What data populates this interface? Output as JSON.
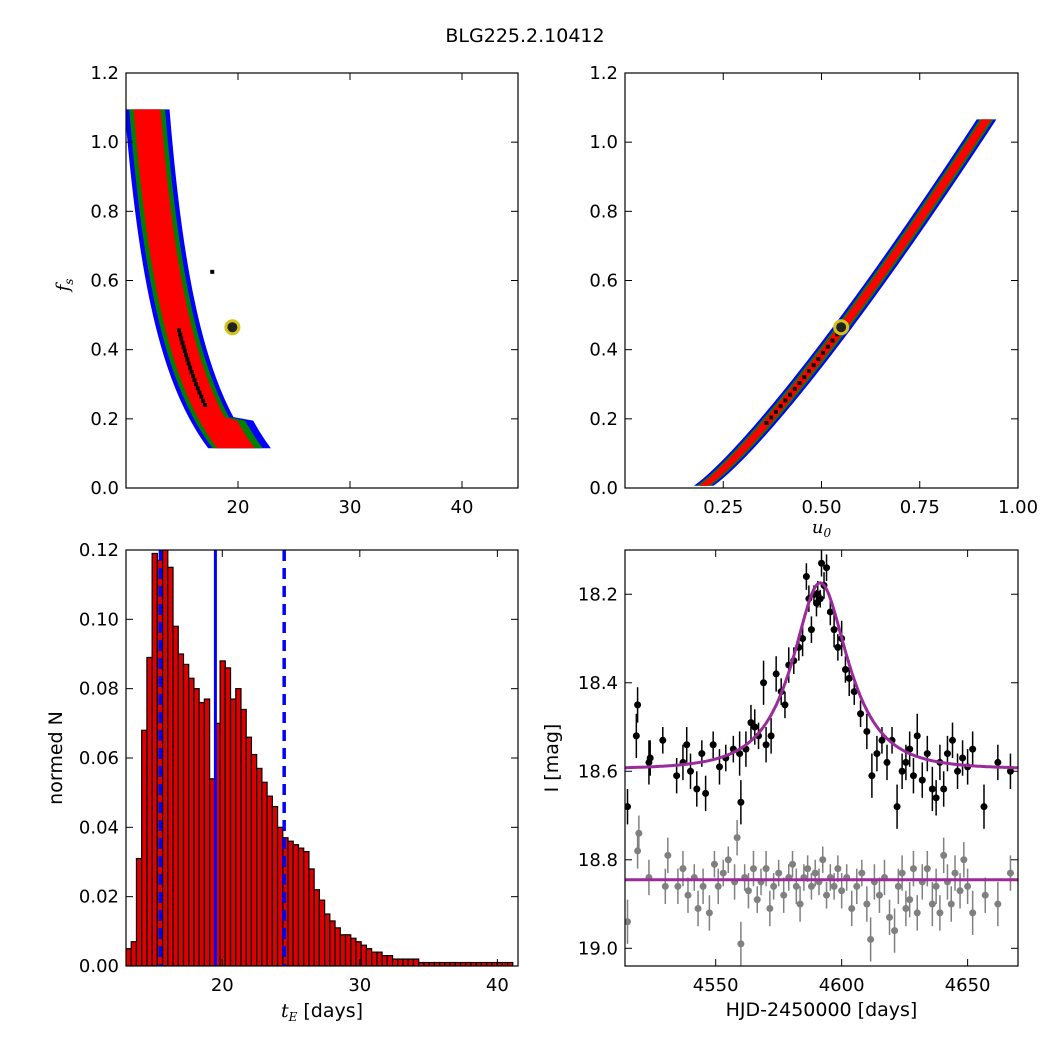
{
  "figure": {
    "title": "BLG225.2.10412"
  },
  "colors": {
    "sigma1": "#ff0000",
    "sigma2": "#008000",
    "sigma3": "#0000ff",
    "best": "#000000",
    "marker_ring": "#d4c21a",
    "hist_fill": "#dd0000",
    "median": "#0000ff",
    "model": "#9b2a9b",
    "data": "#000000",
    "residuals": "#808080"
  },
  "chart_data": [
    {
      "id": "fs_vs_tE",
      "type": "heatmap",
      "xlim": [
        10,
        45
      ],
      "ylim": [
        0.0,
        1.2
      ],
      "xticks": [
        "20",
        "30",
        "40"
      ],
      "xtick_values": [
        20,
        30,
        40
      ],
      "yticks": [
        "0.0",
        "0.2",
        "0.4",
        "0.6",
        "0.8",
        "1.0",
        "1.2"
      ],
      "ytick_values": [
        0.0,
        0.2,
        0.4,
        0.6,
        0.8,
        1.0,
        1.2
      ],
      "xlabel": "",
      "ylabel_math": "f",
      "ylabel_sub": "s",
      "best_fit": {
        "x": 19.5,
        "y": 0.465
      },
      "band": {
        "form": "x = xmin + k / (y + c)",
        "xmin": 8.2,
        "k": 5.4,
        "c": 0.37,
        "y_range": [
          0.115,
          1.1
        ],
        "half_width": {
          "sigma1": 1.2,
          "sigma2": 1.6,
          "sigma3": 2.0
        }
      }
    },
    {
      "id": "fs_vs_u0",
      "type": "heatmap",
      "xlim": [
        0.0,
        1.0
      ],
      "ylim": [
        0.0,
        1.2
      ],
      "xticks": [
        "0.25",
        "0.50",
        "0.75",
        "1.00"
      ],
      "xtick_values": [
        0.25,
        0.5,
        0.75,
        1.0
      ],
      "yticks": [
        "0.0",
        "0.2",
        "0.4",
        "0.6",
        "0.8",
        "1.0",
        "1.2"
      ],
      "ytick_values": [
        0.0,
        0.2,
        0.4,
        0.6,
        0.8,
        1.0,
        1.2
      ],
      "xlabel_math": "u",
      "xlabel_sub": "0",
      "best_fit": {
        "x": 0.55,
        "y": 0.465
      },
      "band": {
        "form": "y = a (x - x0)^p",
        "a": 1.55,
        "x0": 0.19,
        "p": 1.19,
        "x_range": [
          0.2,
          0.92
        ],
        "half_width": {
          "sigma1": 0.012,
          "sigma2": 0.018,
          "sigma3": 0.025
        }
      }
    },
    {
      "id": "tE_histogram",
      "type": "bar",
      "xlim": [
        13,
        41.5
      ],
      "ylim": [
        0.0,
        0.12
      ],
      "xticks": [
        "20",
        "30",
        "40"
      ],
      "xtick_values": [
        20,
        30,
        40
      ],
      "yticks": [
        "0.00",
        "0.02",
        "0.04",
        "0.06",
        "0.08",
        "0.10",
        "0.12"
      ],
      "ytick_values": [
        0.0,
        0.02,
        0.04,
        0.06,
        0.08,
        0.1,
        0.12
      ],
      "ylabel": "normed N",
      "xlabel_math": "t",
      "xlabel_sub": "E",
      "xlabel_unit": " [days]",
      "bin_start": 13.0,
      "bin_width": 0.38,
      "values": [
        0.005,
        0.007,
        0.031,
        0.068,
        0.089,
        0.119,
        0.117,
        0.12,
        0.115,
        0.098,
        0.09,
        0.087,
        0.083,
        0.08,
        0.076,
        0.077,
        0.054,
        0.07,
        0.088,
        0.086,
        0.077,
        0.08,
        0.074,
        0.066,
        0.061,
        0.057,
        0.053,
        0.049,
        0.046,
        0.04,
        0.037,
        0.036,
        0.035,
        0.034,
        0.033,
        0.028,
        0.022,
        0.019,
        0.015,
        0.013,
        0.011,
        0.009,
        0.009,
        0.008,
        0.007,
        0.006,
        0.005,
        0.004,
        0.004,
        0.003,
        0.003,
        0.002,
        0.002,
        0.002,
        0.002,
        0.002,
        0.001,
        0.001,
        0.001,
        0.001,
        0.001,
        0.001,
        0.001,
        0.001,
        0.001,
        0.001,
        0.001,
        0.001,
        0.001,
        0.001,
        0.001,
        0.001,
        0.001,
        0.001
      ],
      "median": 19.5,
      "quantiles": [
        15.5,
        24.5
      ]
    },
    {
      "id": "light_curve",
      "type": "scatter",
      "xlim": [
        4514,
        4670
      ],
      "ylim": [
        19.04,
        18.1
      ],
      "xticks": [
        "4550",
        "4600",
        "4650"
      ],
      "xtick_values": [
        4550,
        4600,
        4650
      ],
      "yticks": [
        "18.2",
        "18.4",
        "18.6",
        "18.8",
        "19.0"
      ],
      "ytick_values": [
        18.2,
        18.4,
        18.6,
        18.8,
        19.0
      ],
      "xlabel": "HJD-2450000 [days]",
      "ylabel": "I [mag]",
      "model": {
        "t0": 4591.5,
        "tE": 19.5,
        "u0": 0.55,
        "fs": 0.465,
        "I_base": 18.595
      },
      "residual_baseline": 18.845,
      "data_points": [
        [
          4515.0,
          18.68,
          0.04
        ],
        [
          4518.5,
          18.52,
          0.05
        ],
        [
          4519.0,
          18.45,
          0.04
        ],
        [
          4523.5,
          18.58,
          0.05
        ],
        [
          4524.0,
          18.57,
          0.04
        ],
        [
          4529.0,
          18.53,
          0.03
        ],
        [
          4534.5,
          18.61,
          0.04
        ],
        [
          4537.0,
          18.58,
          0.04
        ],
        [
          4538.5,
          18.54,
          0.04
        ],
        [
          4540.0,
          18.6,
          0.04
        ],
        [
          4542.5,
          18.64,
          0.04
        ],
        [
          4544.5,
          18.56,
          0.03
        ],
        [
          4546.0,
          18.65,
          0.04
        ],
        [
          4549.0,
          18.54,
          0.03
        ],
        [
          4551.5,
          18.59,
          0.04
        ],
        [
          4554.0,
          18.57,
          0.03
        ],
        [
          4557.0,
          18.55,
          0.03
        ],
        [
          4559.5,
          18.56,
          0.05
        ],
        [
          4560.0,
          18.67,
          0.05
        ],
        [
          4562.0,
          18.55,
          0.04
        ],
        [
          4564.0,
          18.49,
          0.04
        ],
        [
          4565.5,
          18.5,
          0.04
        ],
        [
          4567.0,
          18.52,
          0.03
        ],
        [
          4569.0,
          18.4,
          0.05
        ],
        [
          4570.0,
          18.54,
          0.04
        ],
        [
          4572.0,
          18.52,
          0.04
        ],
        [
          4574.0,
          18.38,
          0.04
        ],
        [
          4576.0,
          18.42,
          0.03
        ],
        [
          4577.5,
          18.45,
          0.03
        ],
        [
          4579.0,
          18.36,
          0.04
        ],
        [
          4581.0,
          18.35,
          0.03
        ],
        [
          4583.0,
          18.32,
          0.03
        ],
        [
          4584.5,
          18.3,
          0.04
        ],
        [
          4586.0,
          18.16,
          0.03
        ],
        [
          4587.0,
          18.21,
          0.03
        ],
        [
          4588.0,
          18.28,
          0.03
        ],
        [
          4589.0,
          18.2,
          0.02
        ],
        [
          4590.0,
          18.22,
          0.03
        ],
        [
          4590.5,
          18.2,
          0.03
        ],
        [
          4591.5,
          18.21,
          0.02
        ],
        [
          4592.0,
          18.13,
          0.03
        ],
        [
          4593.0,
          18.18,
          0.03
        ],
        [
          4594.0,
          18.14,
          0.03
        ],
        [
          4595.5,
          18.24,
          0.03
        ],
        [
          4597.0,
          18.28,
          0.04
        ],
        [
          4598.5,
          18.32,
          0.03
        ],
        [
          4600.0,
          18.3,
          0.04
        ],
        [
          4601.5,
          18.37,
          0.03
        ],
        [
          4603.0,
          18.39,
          0.04
        ],
        [
          4605.0,
          18.42,
          0.03
        ],
        [
          4607.5,
          18.47,
          0.03
        ],
        [
          4610.0,
          18.51,
          0.04
        ],
        [
          4612.0,
          18.61,
          0.05
        ],
        [
          4614.0,
          18.56,
          0.04
        ],
        [
          4616.0,
          18.53,
          0.03
        ],
        [
          4618.0,
          18.58,
          0.04
        ],
        [
          4620.0,
          18.53,
          0.03
        ],
        [
          4622.0,
          18.68,
          0.05
        ],
        [
          4624.0,
          18.6,
          0.04
        ],
        [
          4625.5,
          18.58,
          0.04
        ],
        [
          4627.0,
          18.55,
          0.04
        ],
        [
          4628.5,
          18.61,
          0.04
        ],
        [
          4630.0,
          18.52,
          0.05
        ],
        [
          4632.0,
          18.62,
          0.04
        ],
        [
          4634.0,
          18.56,
          0.04
        ],
        [
          4636.0,
          18.64,
          0.05
        ],
        [
          4637.5,
          18.66,
          0.04
        ],
        [
          4639.0,
          18.58,
          0.04
        ],
        [
          4640.5,
          18.64,
          0.04
        ],
        [
          4642.0,
          18.56,
          0.04
        ],
        [
          4644.0,
          18.53,
          0.04
        ],
        [
          4646.0,
          18.6,
          0.04
        ],
        [
          4648.0,
          18.57,
          0.04
        ],
        [
          4650.0,
          18.59,
          0.04
        ],
        [
          4652.0,
          18.55,
          0.04
        ],
        [
          4656.5,
          18.68,
          0.05
        ],
        [
          4662.0,
          18.58,
          0.04
        ],
        [
          4667.0,
          18.6,
          0.04
        ]
      ],
      "residual_points": [
        [
          4515.0,
          18.94,
          0.05
        ],
        [
          4519.0,
          18.78,
          0.04
        ],
        [
          4519.5,
          18.74,
          0.04
        ],
        [
          4523.5,
          18.84,
          0.04
        ],
        [
          4530.0,
          18.86,
          0.04
        ],
        [
          4531.0,
          18.79,
          0.04
        ],
        [
          4535.0,
          18.86,
          0.04
        ],
        [
          4537.0,
          18.82,
          0.04
        ],
        [
          4539.0,
          18.88,
          0.04
        ],
        [
          4541.5,
          18.84,
          0.03
        ],
        [
          4543.0,
          18.91,
          0.04
        ],
        [
          4545.0,
          18.86,
          0.04
        ],
        [
          4547.5,
          18.92,
          0.04
        ],
        [
          4549.5,
          18.81,
          0.03
        ],
        [
          4551.0,
          18.86,
          0.04
        ],
        [
          4553.0,
          18.83,
          0.03
        ],
        [
          4555.0,
          18.8,
          0.03
        ],
        [
          4557.5,
          18.85,
          0.04
        ],
        [
          4558.5,
          18.75,
          0.04
        ],
        [
          4560.0,
          18.99,
          0.05
        ],
        [
          4561.5,
          18.84,
          0.03
        ],
        [
          4563.0,
          18.87,
          0.04
        ],
        [
          4565.0,
          18.82,
          0.04
        ],
        [
          4566.5,
          18.89,
          0.03
        ],
        [
          4568.0,
          18.85,
          0.03
        ],
        [
          4570.0,
          18.82,
          0.04
        ],
        [
          4571.5,
          18.91,
          0.04
        ],
        [
          4573.0,
          18.86,
          0.03
        ],
        [
          4575.0,
          18.83,
          0.03
        ],
        [
          4577.0,
          18.88,
          0.04
        ],
        [
          4579.0,
          18.84,
          0.03
        ],
        [
          4580.5,
          18.81,
          0.03
        ],
        [
          4582.0,
          18.86,
          0.04
        ],
        [
          4583.5,
          18.9,
          0.04
        ],
        [
          4585.0,
          18.84,
          0.03
        ],
        [
          4586.5,
          18.82,
          0.03
        ],
        [
          4588.0,
          18.86,
          0.03
        ],
        [
          4589.5,
          18.83,
          0.03
        ],
        [
          4591.0,
          18.85,
          0.03
        ],
        [
          4592.5,
          18.8,
          0.03
        ],
        [
          4594.0,
          18.88,
          0.03
        ],
        [
          4595.5,
          18.84,
          0.03
        ],
        [
          4597.0,
          18.86,
          0.03
        ],
        [
          4598.5,
          18.82,
          0.03
        ],
        [
          4600.0,
          18.87,
          0.04
        ],
        [
          4602.0,
          18.84,
          0.03
        ],
        [
          4604.0,
          18.91,
          0.04
        ],
        [
          4606.0,
          18.86,
          0.04
        ],
        [
          4608.0,
          18.83,
          0.03
        ],
        [
          4610.0,
          18.9,
          0.04
        ],
        [
          4611.5,
          18.98,
          0.05
        ],
        [
          4613.0,
          18.85,
          0.04
        ],
        [
          4615.0,
          18.88,
          0.04
        ],
        [
          4617.0,
          18.84,
          0.04
        ],
        [
          4619.0,
          18.93,
          0.04
        ],
        [
          4621.0,
          18.96,
          0.05
        ],
        [
          4622.5,
          18.86,
          0.04
        ],
        [
          4624.0,
          18.83,
          0.04
        ],
        [
          4625.5,
          18.91,
          0.04
        ],
        [
          4627.0,
          18.89,
          0.04
        ],
        [
          4628.5,
          18.82,
          0.04
        ],
        [
          4630.0,
          18.92,
          0.04
        ],
        [
          4632.0,
          18.85,
          0.04
        ],
        [
          4634.0,
          18.82,
          0.04
        ],
        [
          4636.0,
          18.9,
          0.05
        ],
        [
          4637.5,
          18.86,
          0.04
        ],
        [
          4639.0,
          18.92,
          0.04
        ],
        [
          4640.5,
          18.79,
          0.04
        ],
        [
          4642.0,
          18.85,
          0.04
        ],
        [
          4643.5,
          18.9,
          0.04
        ],
        [
          4645.0,
          18.83,
          0.04
        ],
        [
          4647.0,
          18.87,
          0.04
        ],
        [
          4648.5,
          18.8,
          0.04
        ],
        [
          4650.0,
          18.86,
          0.04
        ],
        [
          4652.0,
          18.92,
          0.05
        ],
        [
          4657.0,
          18.88,
          0.04
        ],
        [
          4662.0,
          18.9,
          0.05
        ],
        [
          4667.0,
          18.83,
          0.04
        ]
      ]
    }
  ]
}
